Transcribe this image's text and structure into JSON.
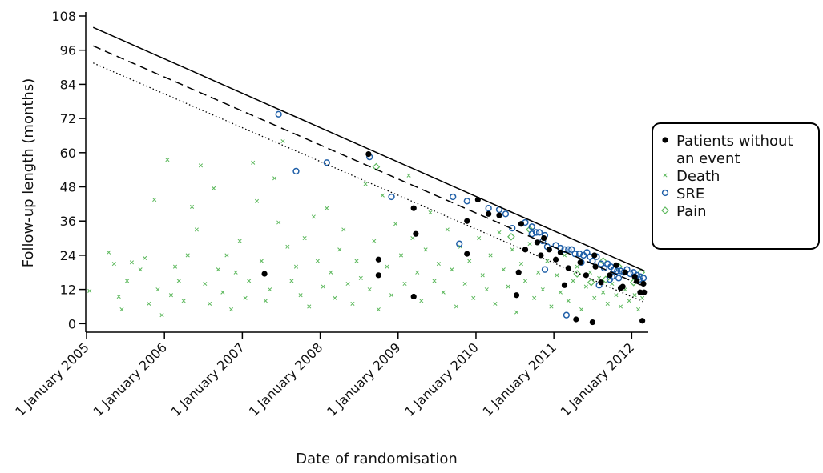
{
  "chart_data": {
    "type": "scatter",
    "xlabel": "Date of randomisation",
    "ylabel": "Follow-up length (months)",
    "x_ticks": [
      "1 January 2005",
      "1 January 2006",
      "1 January 2007",
      "1 January 2008",
      "1 January 2009",
      "1 January 2010",
      "1 January 2011",
      "1 January 2012"
    ],
    "y_ticks": [
      0,
      12,
      24,
      36,
      48,
      60,
      72,
      84,
      96,
      108
    ],
    "xlim": [
      "2005-01-01",
      "2012-03-15"
    ],
    "ylim": [
      -3,
      108
    ],
    "legend_position": "right",
    "legend": [
      "Patients without an event",
      "Death",
      "SRE",
      "Pain"
    ],
    "colors": {
      "patients_without_event": "#000000",
      "death": "#5cb85c",
      "sre": "#1f5fa8",
      "pain": "#5cb85c",
      "lines": "#000000"
    },
    "reference_lines": [
      {
        "style": "solid",
        "start": [
          "2005-02-01",
          104
        ],
        "end": [
          "2012-03-01",
          18.5
        ]
      },
      {
        "style": "dashed",
        "start": [
          "2005-02-01",
          97.5
        ],
        "end": [
          "2012-03-01",
          13
        ]
      },
      {
        "style": "dotted",
        "start": [
          "2005-02-01",
          91.5
        ],
        "end": [
          "2012-03-01",
          7.5
        ]
      }
    ],
    "series": [
      {
        "name": "Patients without an event",
        "marker": "filled-circle",
        "points": [
          [
            "2007-04-15",
            17.5
          ],
          [
            "2008-08-15",
            59.5
          ],
          [
            "2008-10-01",
            22.5
          ],
          [
            "2008-10-01",
            17
          ],
          [
            "2009-03-15",
            40.5
          ],
          [
            "2009-03-25",
            31.5
          ],
          [
            "2009-03-15",
            9.5
          ],
          [
            "2009-11-20",
            36
          ],
          [
            "2009-11-20",
            24.5
          ],
          [
            "2010-01-10",
            43.5
          ],
          [
            "2010-03-01",
            38.5
          ],
          [
            "2010-04-20",
            38
          ],
          [
            "2010-07-10",
            10
          ],
          [
            "2010-07-20",
            18
          ],
          [
            "2010-08-20",
            26
          ],
          [
            "2010-08-01",
            35
          ],
          [
            "2010-10-15",
            28.5
          ],
          [
            "2010-11-01",
            24
          ],
          [
            "2010-11-15",
            30
          ],
          [
            "2010-12-10",
            26
          ],
          [
            "2011-01-10",
            22.5
          ],
          [
            "2011-02-01",
            25
          ],
          [
            "2011-02-20",
            13.5
          ],
          [
            "2011-03-10",
            19.5
          ],
          [
            "2011-04-15",
            1.5
          ],
          [
            "2011-05-05",
            21.5
          ],
          [
            "2011-06-01",
            17
          ],
          [
            "2011-07-01",
            0.5
          ],
          [
            "2011-07-15",
            20
          ],
          [
            "2011-08-10",
            14.5
          ],
          [
            "2011-09-20",
            17
          ],
          [
            "2011-10-20",
            20.5
          ],
          [
            "2011-11-10",
            12.5
          ],
          [
            "2011-12-01",
            18
          ],
          [
            "2012-01-15",
            16.5
          ],
          [
            "2012-01-25",
            15
          ],
          [
            "2012-02-10",
            11
          ],
          [
            "2012-02-25",
            14
          ],
          [
            "2012-02-20",
            1
          ],
          [
            "2012-02-28",
            11
          ],
          [
            "2011-07-10",
            24
          ],
          [
            "2011-11-20",
            13
          ]
        ]
      },
      {
        "name": "SRE",
        "marker": "open-circle",
        "points": [
          [
            "2007-06-20",
            73.5
          ],
          [
            "2007-09-10",
            53.5
          ],
          [
            "2008-02-01",
            56.5
          ],
          [
            "2008-08-20",
            58.5
          ],
          [
            "2008-12-01",
            44.5
          ],
          [
            "2009-09-15",
            44.5
          ],
          [
            "2009-10-15",
            28
          ],
          [
            "2009-11-20",
            43
          ],
          [
            "2010-03-01",
            40.5
          ],
          [
            "2010-04-20",
            40
          ],
          [
            "2010-05-20",
            38.5
          ],
          [
            "2010-06-20",
            33.5
          ],
          [
            "2010-08-20",
            35.5
          ],
          [
            "2010-09-20",
            34
          ],
          [
            "2010-09-20",
            31.5
          ],
          [
            "2010-10-10",
            32
          ],
          [
            "2010-10-25",
            32
          ],
          [
            "2010-11-20",
            31
          ],
          [
            "2010-11-10",
            29
          ],
          [
            "2010-12-01",
            27
          ],
          [
            "2010-11-20",
            19
          ],
          [
            "2011-01-10",
            27.5
          ],
          [
            "2011-02-01",
            26.5
          ],
          [
            "2011-02-20",
            26
          ],
          [
            "2011-03-10",
            26
          ],
          [
            "2011-03-25",
            26
          ],
          [
            "2011-04-10",
            24.5
          ],
          [
            "2011-05-01",
            24.5
          ],
          [
            "2011-05-20",
            24
          ],
          [
            "2011-06-05",
            25
          ],
          [
            "2011-06-20",
            23.5
          ],
          [
            "2011-07-01",
            22
          ],
          [
            "2011-07-20",
            23.5
          ],
          [
            "2011-08-10",
            21
          ],
          [
            "2011-08-25",
            19.5
          ],
          [
            "2011-09-10",
            21
          ],
          [
            "2011-09-25",
            20
          ],
          [
            "2011-10-10",
            19
          ],
          [
            "2011-10-25",
            18.5
          ],
          [
            "2011-11-10",
            18.5
          ],
          [
            "2011-11-25",
            18
          ],
          [
            "2011-12-10",
            19
          ],
          [
            "2011-12-25",
            17.5
          ],
          [
            "2012-01-10",
            18
          ],
          [
            "2012-01-25",
            17
          ],
          [
            "2012-02-10",
            16.5
          ],
          [
            "2012-02-25",
            16
          ],
          [
            "2011-03-01",
            3
          ],
          [
            "2011-08-01",
            13.5
          ],
          [
            "2011-09-20",
            15.5
          ],
          [
            "2011-11-01",
            16
          ],
          [
            "2012-02-05",
            15.5
          ],
          [
            "2011-05-10",
            21.5
          ],
          [
            "2011-10-01",
            16.5
          ]
        ]
      },
      {
        "name": "Pain",
        "marker": "open-diamond",
        "points": [
          [
            "2008-09-20",
            55
          ],
          [
            "2010-06-15",
            30.5
          ],
          [
            "2010-09-10",
            33
          ],
          [
            "2011-04-20",
            17.5
          ],
          [
            "2011-06-25",
            14.5
          ],
          [
            "2011-08-20",
            22
          ],
          [
            "2011-09-01",
            15.5
          ],
          [
            "2011-11-01",
            20
          ],
          [
            "2012-01-10",
            14.5
          ],
          [
            "2012-02-15",
            18
          ]
        ]
      },
      {
        "name": "Death",
        "marker": "x",
        "points": [
          [
            "2005-01-15",
            11.5
          ],
          [
            "2005-04-15",
            25
          ],
          [
            "2005-05-10",
            21
          ],
          [
            "2005-06-01",
            9.5
          ],
          [
            "2005-06-15",
            5
          ],
          [
            "2005-07-10",
            15
          ],
          [
            "2005-08-01",
            21.5
          ],
          [
            "2005-09-10",
            19
          ],
          [
            "2005-10-01",
            23
          ],
          [
            "2005-10-20",
            7
          ],
          [
            "2005-11-15",
            43.5
          ],
          [
            "2005-12-01",
            12
          ],
          [
            "2005-12-20",
            3
          ],
          [
            "2006-01-15",
            57.5
          ],
          [
            "2006-02-01",
            10
          ],
          [
            "2006-02-20",
            20
          ],
          [
            "2006-03-10",
            15
          ],
          [
            "2006-04-01",
            8
          ],
          [
            "2006-04-20",
            24
          ],
          [
            "2006-05-10",
            41
          ],
          [
            "2006-06-01",
            33
          ],
          [
            "2006-06-20",
            55.5
          ],
          [
            "2006-07-10",
            14
          ],
          [
            "2006-08-01",
            7
          ],
          [
            "2006-08-20",
            47.5
          ],
          [
            "2006-09-10",
            19
          ],
          [
            "2006-10-01",
            11
          ],
          [
            "2006-10-20",
            24
          ],
          [
            "2006-11-10",
            5
          ],
          [
            "2006-12-01",
            18
          ],
          [
            "2006-12-20",
            29
          ],
          [
            "2007-01-15",
            9
          ],
          [
            "2007-02-01",
            15
          ],
          [
            "2007-02-20",
            56.5
          ],
          [
            "2007-03-10",
            43
          ],
          [
            "2007-04-01",
            22
          ],
          [
            "2007-04-20",
            8
          ],
          [
            "2007-05-10",
            12
          ],
          [
            "2007-06-01",
            51
          ],
          [
            "2007-06-20",
            35.5
          ],
          [
            "2007-07-10",
            64
          ],
          [
            "2007-08-01",
            27
          ],
          [
            "2007-08-20",
            15
          ],
          [
            "2007-09-10",
            20
          ],
          [
            "2007-10-01",
            10
          ],
          [
            "2007-10-20",
            30
          ],
          [
            "2007-11-10",
            6
          ],
          [
            "2007-12-01",
            37.5
          ],
          [
            "2007-12-20",
            22
          ],
          [
            "2008-01-15",
            13
          ],
          [
            "2008-02-01",
            40.5
          ],
          [
            "2008-02-20",
            18
          ],
          [
            "2008-03-10",
            9
          ],
          [
            "2008-04-01",
            26
          ],
          [
            "2008-04-20",
            33
          ],
          [
            "2008-05-10",
            14
          ],
          [
            "2008-06-01",
            7
          ],
          [
            "2008-06-20",
            22
          ],
          [
            "2008-07-10",
            16
          ],
          [
            "2008-08-01",
            49
          ],
          [
            "2008-08-20",
            12
          ],
          [
            "2008-09-10",
            29
          ],
          [
            "2008-10-01",
            5
          ],
          [
            "2008-10-20",
            45
          ],
          [
            "2008-11-10",
            20
          ],
          [
            "2008-12-01",
            10
          ],
          [
            "2008-12-20",
            35
          ],
          [
            "2009-01-15",
            24
          ],
          [
            "2009-02-01",
            14
          ],
          [
            "2009-02-20",
            52
          ],
          [
            "2009-03-10",
            30
          ],
          [
            "2009-04-01",
            18
          ],
          [
            "2009-04-20",
            8
          ],
          [
            "2009-05-10",
            26
          ],
          [
            "2009-06-01",
            39
          ],
          [
            "2009-06-20",
            15
          ],
          [
            "2009-07-10",
            21
          ],
          [
            "2009-08-01",
            11
          ],
          [
            "2009-08-20",
            33
          ],
          [
            "2009-09-10",
            19
          ],
          [
            "2009-10-01",
            6
          ],
          [
            "2009-10-20",
            27
          ],
          [
            "2009-11-10",
            14
          ],
          [
            "2009-12-01",
            22
          ],
          [
            "2009-12-20",
            9
          ],
          [
            "2010-01-15",
            30
          ],
          [
            "2010-02-01",
            17
          ],
          [
            "2010-02-20",
            12
          ],
          [
            "2010-03-10",
            24
          ],
          [
            "2010-04-01",
            7
          ],
          [
            "2010-04-20",
            32
          ],
          [
            "2010-05-10",
            19
          ],
          [
            "2010-06-01",
            13
          ],
          [
            "2010-06-20",
            26
          ],
          [
            "2010-07-10",
            4
          ],
          [
            "2010-08-01",
            21
          ],
          [
            "2010-08-20",
            15
          ],
          [
            "2010-09-10",
            28
          ],
          [
            "2010-10-01",
            9
          ],
          [
            "2010-10-20",
            18
          ],
          [
            "2010-11-10",
            12
          ],
          [
            "2010-12-01",
            22
          ],
          [
            "2010-12-20",
            6
          ],
          [
            "2011-01-15",
            17
          ],
          [
            "2011-02-01",
            11
          ],
          [
            "2011-02-20",
            24
          ],
          [
            "2011-03-10",
            8
          ],
          [
            "2011-04-01",
            15
          ],
          [
            "2011-04-20",
            20
          ],
          [
            "2011-05-10",
            5
          ],
          [
            "2011-06-01",
            13
          ],
          [
            "2011-06-20",
            18
          ],
          [
            "2011-07-10",
            9
          ],
          [
            "2011-08-01",
            16
          ],
          [
            "2011-08-20",
            11
          ],
          [
            "2011-09-10",
            7
          ],
          [
            "2011-10-01",
            14
          ],
          [
            "2011-10-20",
            10
          ],
          [
            "2011-11-10",
            6
          ],
          [
            "2011-12-01",
            12
          ],
          [
            "2011-12-20",
            8
          ],
          [
            "2012-01-15",
            10
          ],
          [
            "2012-02-01",
            5
          ],
          [
            "2012-02-20",
            9
          ]
        ]
      }
    ]
  }
}
